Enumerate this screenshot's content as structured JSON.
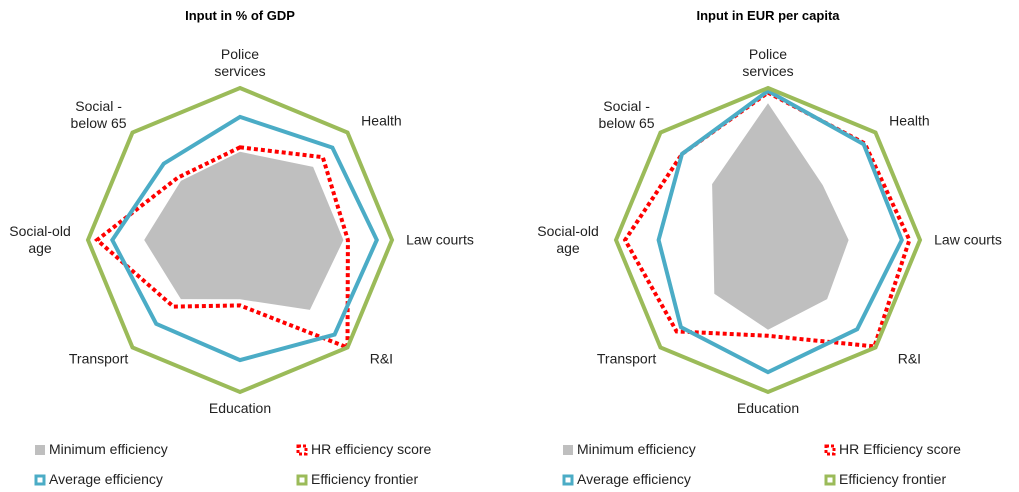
{
  "chart_data": [
    {
      "type": "radar",
      "title": "Input in % of GDP",
      "categories": [
        "Police services",
        "Health",
        "Law courts",
        "R&I",
        "Education",
        "Transport",
        "Social-old age",
        "Social - below 65"
      ],
      "rlim": [
        0,
        1
      ],
      "series": [
        {
          "name": "Minimum efficiency",
          "color": "#bfbfbf",
          "style": "filled",
          "values": [
            0.58,
            0.68,
            0.68,
            0.65,
            0.39,
            0.55,
            0.63,
            0.55
          ]
        },
        {
          "name": "HR efficiency score",
          "color": "#ff0000",
          "style": "dotted",
          "values": [
            0.61,
            0.77,
            0.71,
            1.0,
            0.43,
            0.62,
            0.94,
            0.58
          ]
        },
        {
          "name": "Average efficiency",
          "color": "#4bacc6",
          "style": "solid",
          "values": [
            0.81,
            0.86,
            0.9,
            0.88,
            0.79,
            0.78,
            0.84,
            0.71
          ]
        },
        {
          "name": "Efficiency frontier",
          "color": "#9bbb59",
          "style": "solid",
          "values": [
            1,
            1,
            1,
            1,
            1,
            1,
            1,
            1
          ]
        }
      ]
    },
    {
      "type": "radar",
      "title": "Input in EUR per capita",
      "categories": [
        "Police services",
        "Health",
        "Law courts",
        "R&I",
        "Education",
        "Transport",
        "Social-old age",
        "Social - below 65"
      ],
      "rlim": [
        0,
        1
      ],
      "series": [
        {
          "name": "Minimum efficiency",
          "color": "#bfbfbf",
          "style": "filled",
          "values": [
            0.9,
            0.51,
            0.53,
            0.55,
            0.59,
            0.5,
            0.36,
            0.52
          ]
        },
        {
          "name": "HR Efficiency score",
          "color": "#ff0000",
          "style": "dotted",
          "values": [
            0.97,
            0.9,
            0.93,
            0.99,
            0.63,
            0.85,
            0.94,
            0.8
          ]
        },
        {
          "name": "Average efficiency",
          "color": "#4bacc6",
          "style": "solid",
          "values": [
            0.98,
            0.89,
            0.88,
            0.83,
            0.87,
            0.81,
            0.72,
            0.8
          ]
        },
        {
          "name": "Efficiency frontier",
          "color": "#9bbb59",
          "style": "solid",
          "values": [
            1,
            1,
            1,
            1,
            1,
            1,
            1,
            1
          ]
        }
      ]
    }
  ]
}
